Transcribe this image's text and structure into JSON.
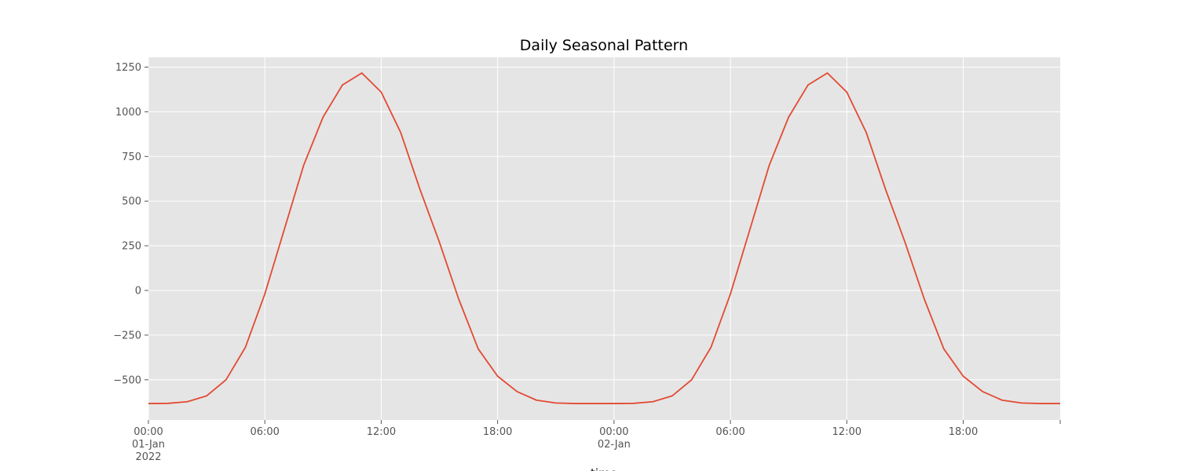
{
  "chart_data": {
    "type": "line",
    "title": "Daily Seasonal Pattern",
    "xlabel": "time",
    "ylabel": "",
    "x_hours": [
      0,
      1,
      2,
      3,
      4,
      5,
      6,
      7,
      8,
      9,
      10,
      11,
      12,
      13,
      14,
      15,
      16,
      17,
      18,
      19,
      20,
      21,
      22,
      23,
      24,
      25,
      26,
      27,
      28,
      29,
      30,
      31,
      32,
      33,
      34,
      35,
      36,
      37,
      38,
      39,
      40,
      41,
      42,
      43,
      44,
      45,
      46,
      47
    ],
    "series": [
      {
        "values": [
          -633,
          -632,
          -623,
          -590,
          -500,
          -318,
          -20,
          340,
          700,
          970,
          1150,
          1217,
          1110,
          885,
          565,
          270,
          -50,
          -327,
          -480,
          -566,
          -614,
          -630,
          -633,
          -633,
          -633,
          -632,
          -623,
          -590,
          -500,
          -318,
          -20,
          340,
          700,
          970,
          1150,
          1217,
          1110,
          885,
          565,
          270,
          -50,
          -327,
          -480,
          -566,
          -614,
          -630,
          -633,
          -633
        ],
        "color": "#E24A33"
      }
    ],
    "xlim": [
      0,
      47
    ],
    "ylim": [
      -725,
      1305
    ],
    "yticks": [
      -500,
      -250,
      0,
      250,
      500,
      750,
      1000,
      1250
    ],
    "ytick_labels": [
      "−500",
      "−250",
      "0",
      "250",
      "500",
      "750",
      "1000",
      "1250"
    ],
    "xticks": [
      {
        "hour": 0,
        "lines": [
          "00:00",
          "01-Jan",
          "2022"
        ]
      },
      {
        "hour": 6,
        "lines": [
          "06:00"
        ]
      },
      {
        "hour": 12,
        "lines": [
          "12:00"
        ]
      },
      {
        "hour": 18,
        "lines": [
          "18:00"
        ]
      },
      {
        "hour": 24,
        "lines": [
          "00:00",
          "02-Jan"
        ]
      },
      {
        "hour": 30,
        "lines": [
          "06:00"
        ]
      },
      {
        "hour": 36,
        "lines": [
          "12:00"
        ]
      },
      {
        "hour": 42,
        "lines": [
          "18:00"
        ]
      }
    ],
    "grid": true,
    "style": "ggplot",
    "background_color": "#E5E5E5",
    "grid_color": "#FFFFFF",
    "line_color": "#E24A33"
  }
}
